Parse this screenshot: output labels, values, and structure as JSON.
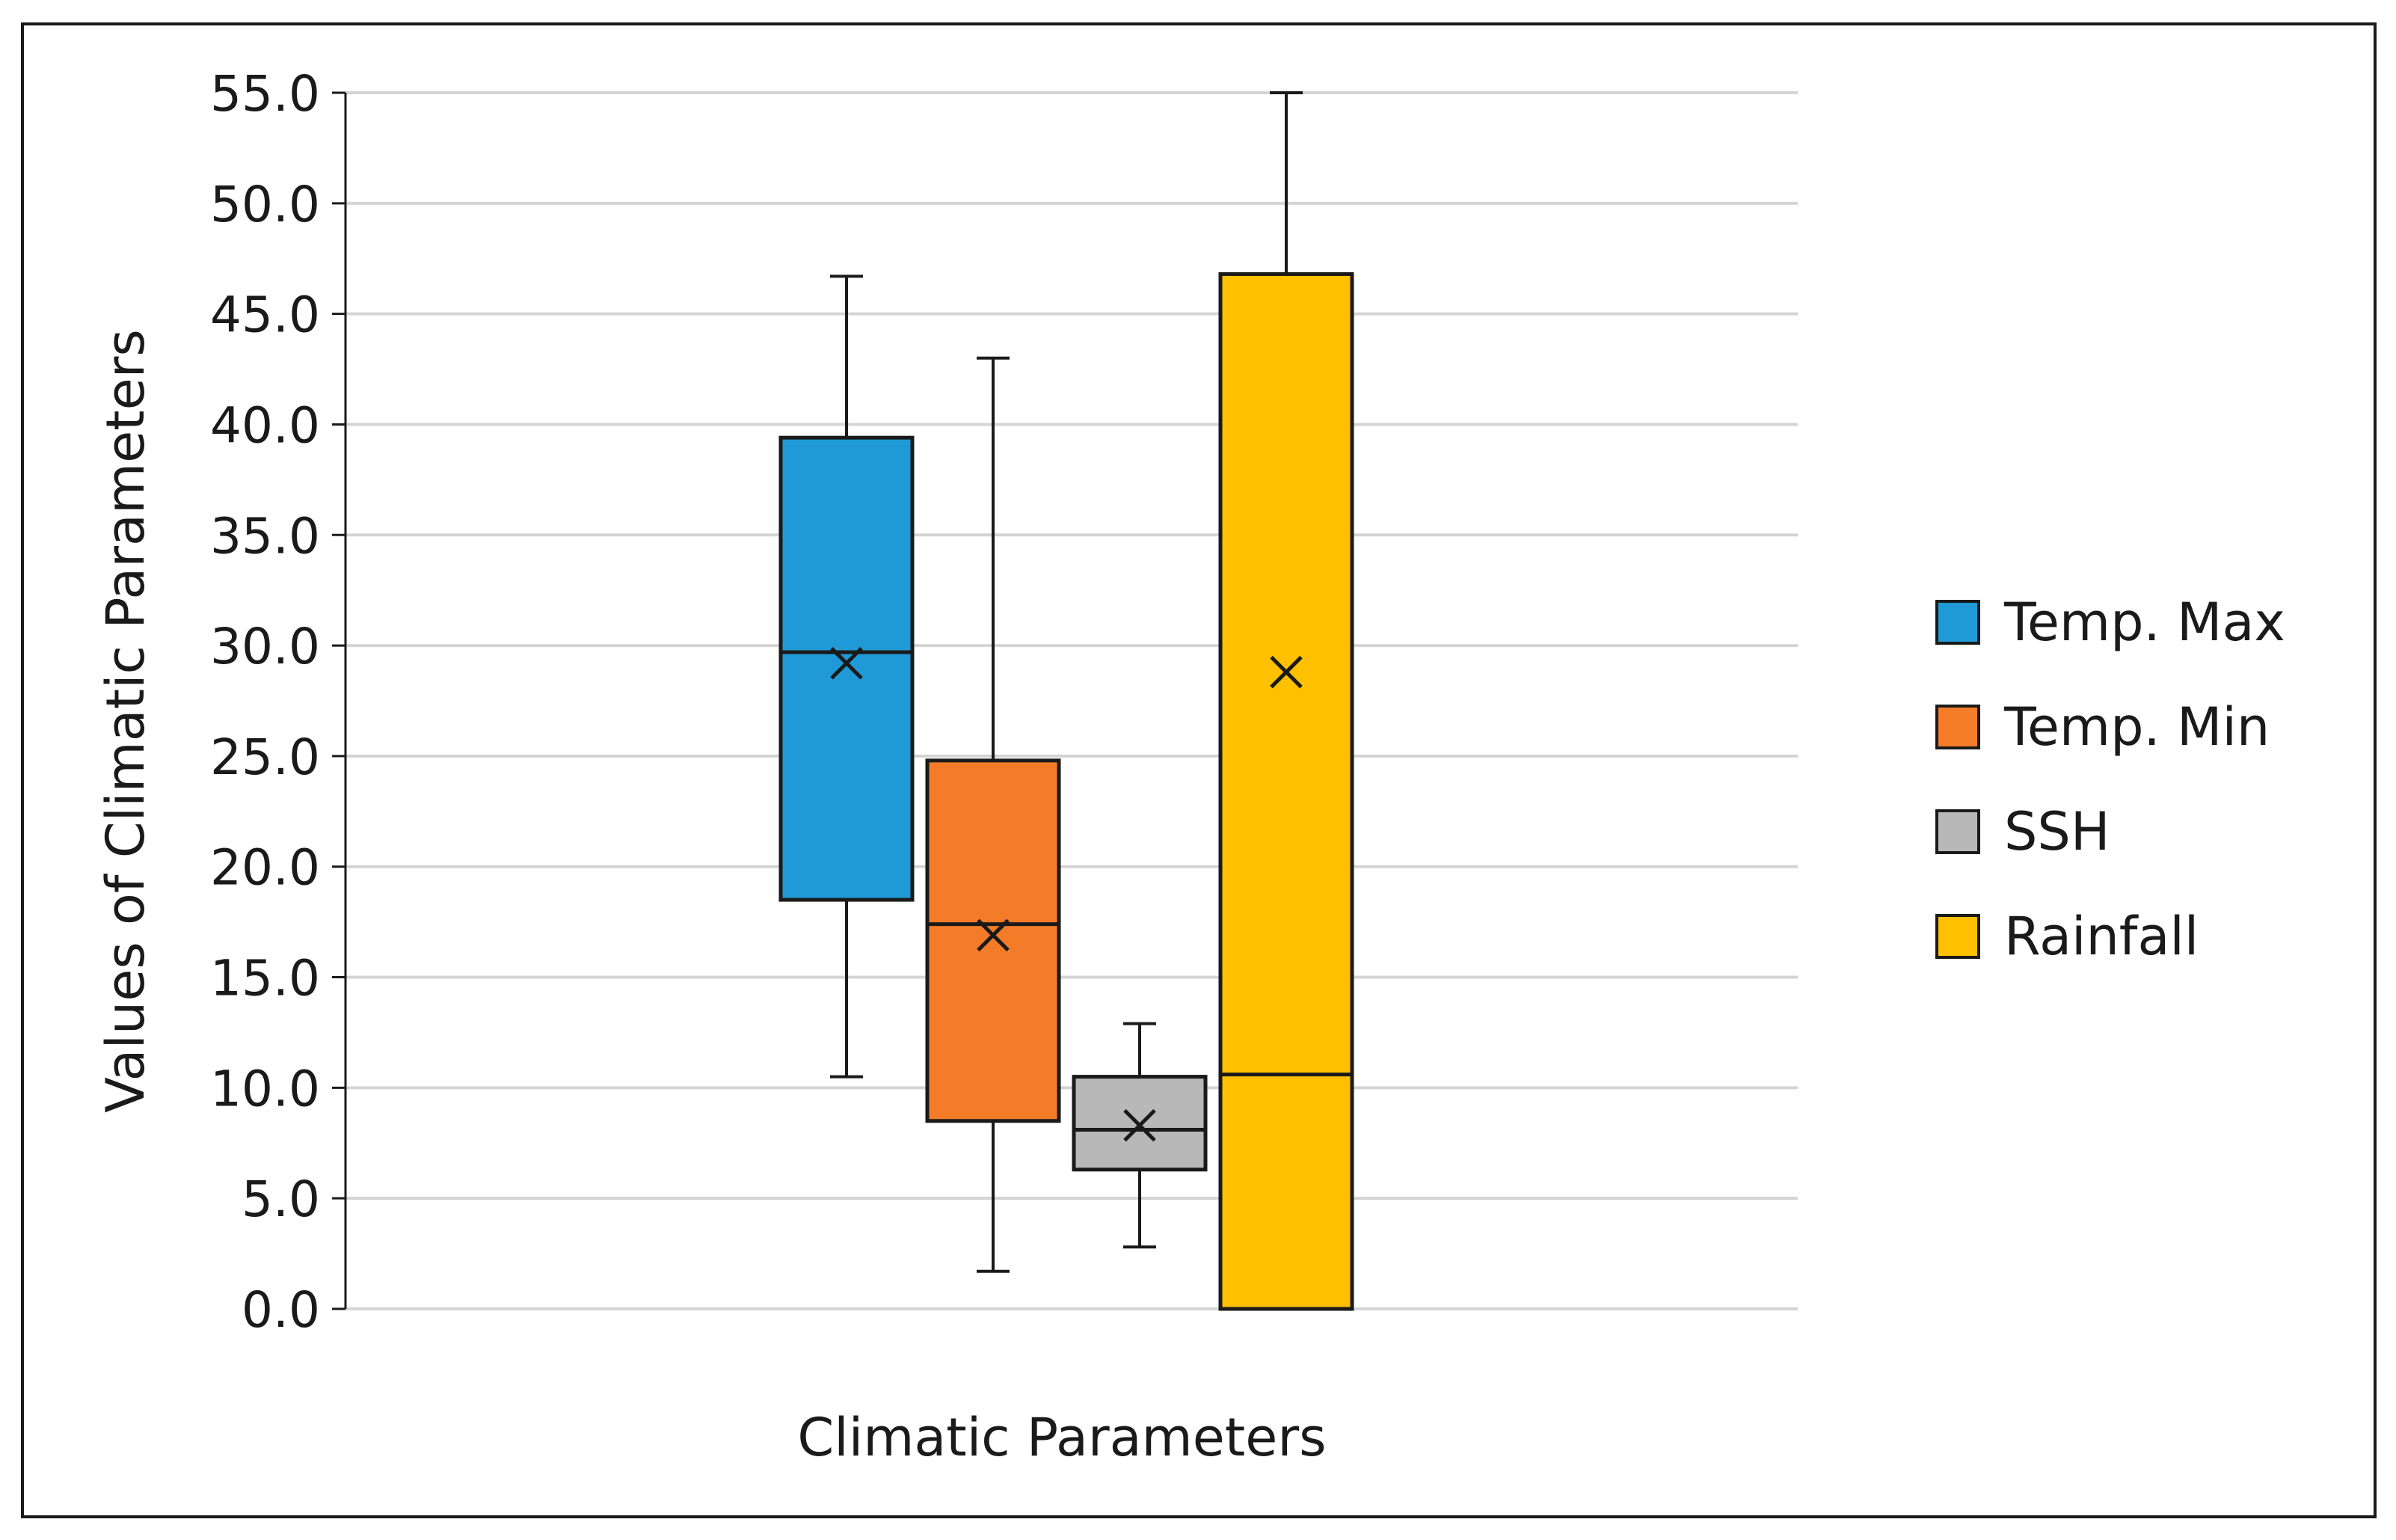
{
  "chart_data": {
    "type": "box",
    "xlabel": "Climatic Parameters",
    "ylabel": "Values of Climatic Parameters",
    "ylim": [
      0,
      55
    ],
    "ytick_step": 5,
    "ytick_labels": [
      "0.0",
      "5.0",
      "10.0",
      "15.0",
      "20.0",
      "25.0",
      "30.0",
      "35.0",
      "40.0",
      "45.0",
      "50.0",
      "55.0"
    ],
    "grid": true,
    "legend_position": "right",
    "series": [
      {
        "name": "Temp. Max",
        "color": "#1f9ad6",
        "min": 10.5,
        "q1": 18.5,
        "median": 29.7,
        "q3": 39.4,
        "max": 46.7,
        "mean": 29.2
      },
      {
        "name": "Temp. Min",
        "color": "#f47c28",
        "min": 1.7,
        "q1": 8.5,
        "median": 17.4,
        "q3": 24.8,
        "max": 43.0,
        "mean": 16.9
      },
      {
        "name": "SSH",
        "color": "#b8b8b8",
        "min": 2.8,
        "q1": 6.3,
        "median": 8.1,
        "q3": 10.5,
        "max": 12.9,
        "mean": 8.3
      },
      {
        "name": "Rainfall",
        "color": "#ffc000",
        "min": 0.0,
        "q1": 0.0,
        "median": 10.6,
        "q3": 46.8,
        "max": 55.0,
        "mean": 28.8
      }
    ]
  }
}
